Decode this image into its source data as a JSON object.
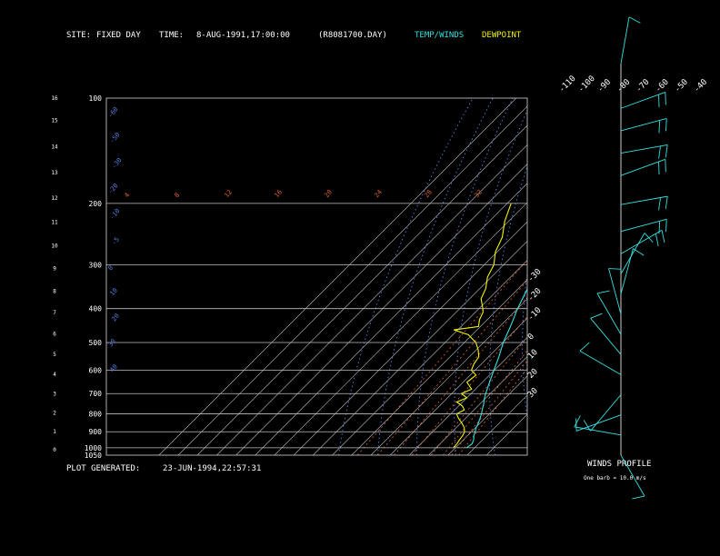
{
  "header": {
    "site_label": "SITE:",
    "site_value": "FIXED DAY",
    "time_label": "TIME:",
    "time_value": "8-AUG-1991,17:00:00",
    "file_name": "(R8081700.DAY)",
    "temp_legend": "TEMP/WINDS",
    "dewpoint_legend": "DEWPOINT"
  },
  "footer": {
    "generated_label": "PLOT GENERATED:",
    "generated_value": "23-JUN-1994,22:57:31"
  },
  "wind_panel": {
    "title": "WINDS PROFILE",
    "note": "One barb = 10.0 m/s"
  },
  "colors": {
    "temperature": "#33e0e0",
    "dewpoint": "#f5f500",
    "isobar": "#bfbfbf",
    "isotherm": "#bfbfbf",
    "dry_adiabat": "#5a7fe0",
    "moist_adiabat": "#5a7fe0",
    "mixing_ratio": "#e06030",
    "background": "#000000"
  },
  "chart_data": {
    "type": "line",
    "subtype": "skew-T log-P diagram",
    "y_scale": "log pressure (hPa), decreasing upward",
    "ylim": [
      1050,
      100
    ],
    "temperature_axis_range": [
      -110,
      -40
    ],
    "pressure_levels": [
      100,
      200,
      300,
      400,
      500,
      600,
      700,
      800,
      900,
      1000,
      1050
    ],
    "pressure_tick_labels": [
      "100",
      "200",
      "300",
      "400",
      "500",
      "600",
      "700",
      "800",
      "900",
      "1000",
      "1050"
    ],
    "height_ticks_km": [
      "0",
      "1",
      "2",
      "3",
      "4",
      "5",
      "6",
      "7",
      "8",
      "9",
      "10",
      "11",
      "12",
      "13",
      "14",
      "15",
      "16"
    ],
    "isotherm_labels_top": [
      "-110",
      "-100",
      "-90",
      "-80",
      "-70",
      "-60",
      "-50",
      "-40"
    ],
    "isotherm_labels_right": [
      "-30",
      "-20",
      "-10",
      "0",
      "10",
      "20",
      "30"
    ],
    "dry_adiabat_labels": [
      "-60",
      "-50",
      "-30",
      "-20",
      "-10",
      "-5",
      "0",
      "10",
      "20",
      "30",
      "40"
    ],
    "mixing_ratio_labels": [
      "4",
      "8",
      "12",
      "16",
      "20",
      "24",
      "28",
      "32"
    ],
    "isotherms_degC": [
      -130,
      -120,
      -110,
      -100,
      -90,
      -80,
      -70,
      -60,
      -50,
      -40,
      -30,
      -20,
      -10,
      0,
      10,
      20,
      30,
      40
    ],
    "series": [
      {
        "name": "TEMP/WINDS",
        "color": "#33e0e0",
        "points": [
          [
            1000,
            25.8
          ],
          [
            975,
            26.6
          ],
          [
            950,
            25.4
          ],
          [
            925,
            23.4
          ],
          [
            900,
            21.9
          ],
          [
            875,
            20.3
          ],
          [
            850,
            19.1
          ],
          [
            825,
            17.6
          ],
          [
            800,
            15.9
          ],
          [
            775,
            13.9
          ],
          [
            750,
            12.0
          ],
          [
            725,
            9.6
          ],
          [
            700,
            7.6
          ],
          [
            650,
            3.7
          ],
          [
            600,
            -0.3
          ],
          [
            550,
            -4.6
          ],
          [
            500,
            -9.8
          ],
          [
            450,
            -14.4
          ],
          [
            400,
            -20.0
          ],
          [
            350,
            -25.3
          ],
          [
            300,
            -33.5
          ],
          [
            275,
            -37.9
          ],
          [
            250,
            -42.3
          ],
          [
            225,
            -48.3
          ],
          [
            200,
            -53.5
          ],
          [
            175,
            -58.3
          ],
          [
            150,
            -63.2
          ],
          [
            135,
            -68.7
          ],
          [
            125,
            -69.3
          ],
          [
            115,
            -70.1
          ],
          [
            105,
            -74.0
          ],
          [
            100,
            -74.6
          ]
        ]
      },
      {
        "name": "DEWPOINT",
        "color": "#f5f500",
        "points": [
          [
            1000,
            19.0
          ],
          [
            975,
            18.8
          ],
          [
            950,
            18.0
          ],
          [
            925,
            17.5
          ],
          [
            900,
            16.5
          ],
          [
            875,
            14.0
          ],
          [
            850,
            10.5
          ],
          [
            825,
            6.5
          ],
          [
            800,
            3.0
          ],
          [
            780,
            5.0
          ],
          [
            760,
            2.0
          ],
          [
            740,
            -3.0
          ],
          [
            720,
            0.0
          ],
          [
            700,
            -5.0
          ],
          [
            680,
            -2.0
          ],
          [
            650,
            -8.0
          ],
          [
            620,
            -7.0
          ],
          [
            600,
            -12.0
          ],
          [
            575,
            -14.0
          ],
          [
            550,
            -15.0
          ],
          [
            525,
            -19.0
          ],
          [
            500,
            -24.0
          ],
          [
            475,
            -32.0
          ],
          [
            460,
            -42.0
          ],
          [
            450,
            -31.0
          ],
          [
            430,
            -34.0
          ],
          [
            410,
            -36.0
          ],
          [
            400,
            -38.0
          ],
          [
            375,
            -44.0
          ],
          [
            350,
            -47.0
          ],
          [
            325,
            -52.0
          ],
          [
            300,
            -55.0
          ],
          [
            275,
            -61.0
          ],
          [
            250,
            -65.0
          ],
          [
            225,
            -72.0
          ],
          [
            200,
            -78.0
          ]
        ]
      }
    ],
    "winds": [
      {
        "height_km": 0.0,
        "speed": 10,
        "dir": 150
      },
      {
        "height_km": 0.9,
        "speed": 10,
        "dir": 280
      },
      {
        "height_km": 1.8,
        "speed": 10,
        "dir": 250
      },
      {
        "height_km": 2.7,
        "speed": 10,
        "dir": 220
      },
      {
        "height_km": 3.6,
        "speed": 10,
        "dir": 300
      },
      {
        "height_km": 4.5,
        "speed": 10,
        "dir": 320
      },
      {
        "height_km": 5.4,
        "speed": 10,
        "dir": 330
      },
      {
        "height_km": 6.3,
        "speed": 10,
        "dir": 345
      },
      {
        "height_km": 7.2,
        "speed": 10,
        "dir": 15
      },
      {
        "height_km": 8.1,
        "speed": 10,
        "dir": 30
      },
      {
        "height_km": 9.0,
        "speed": 20,
        "dir": 60
      },
      {
        "height_km": 10.0,
        "speed": 20,
        "dir": 75
      },
      {
        "height_km": 11.2,
        "speed": 20,
        "dir": 80
      },
      {
        "height_km": 12.5,
        "speed": 20,
        "dir": 70
      },
      {
        "height_km": 13.5,
        "speed": 20,
        "dir": 80
      },
      {
        "height_km": 14.5,
        "speed": 20,
        "dir": 75
      },
      {
        "height_km": 15.5,
        "speed": 20,
        "dir": 70
      },
      {
        "height_km": 17.5,
        "speed": 10,
        "dir": 10
      }
    ]
  }
}
